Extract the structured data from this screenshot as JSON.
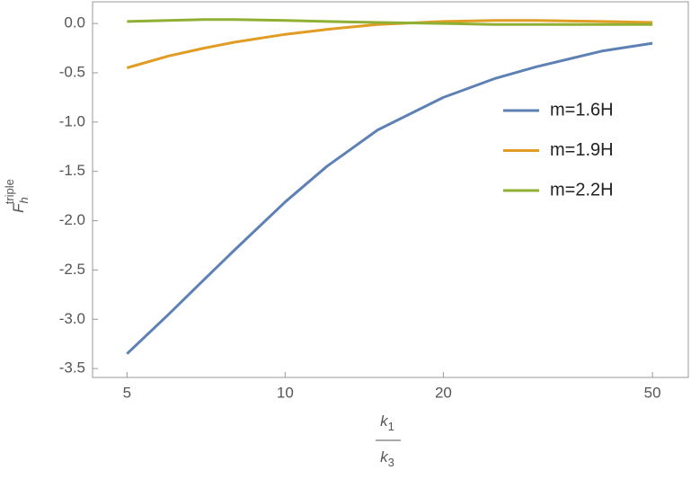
{
  "chart_data": {
    "type": "line",
    "log_x": true,
    "x_label": {
      "numerator": {
        "base": "k",
        "sub": "1"
      },
      "denominator": {
        "base": "k",
        "sub": "3"
      }
    },
    "y_label": {
      "base": "F",
      "sub": "h",
      "sup": "triple"
    },
    "x": [
      5,
      6,
      7,
      8,
      10,
      12,
      15,
      20,
      25,
      30,
      40,
      50
    ],
    "series": [
      {
        "name": "m=1.6H",
        "color": "#5e81b5",
        "values": [
          -3.35,
          -2.95,
          -2.6,
          -2.3,
          -1.81,
          -1.45,
          -1.08,
          -0.75,
          -0.56,
          -0.44,
          -0.28,
          -0.2
        ]
      },
      {
        "name": "m=1.9H",
        "color": "#e19c24",
        "values": [
          -0.45,
          -0.33,
          -0.25,
          -0.19,
          -0.11,
          -0.06,
          -0.01,
          0.02,
          0.03,
          0.03,
          0.02,
          0.01
        ]
      },
      {
        "name": "m=2.2H",
        "color": "#8fb032",
        "values": [
          0.02,
          0.03,
          0.04,
          0.04,
          0.03,
          0.02,
          0.01,
          0.0,
          -0.01,
          -0.01,
          -0.01,
          -0.01
        ]
      }
    ],
    "xlim": [
      4.3,
      58.5
    ],
    "ylim": [
      -3.59,
      0.22
    ],
    "xticks": [
      5,
      10,
      20,
      50
    ],
    "yticks": [
      {
        "value": 0,
        "label": "0.0"
      },
      {
        "value": -0.5,
        "label": "-0.5"
      },
      {
        "value": -1,
        "label": "-1.0"
      },
      {
        "value": -1.5,
        "label": "-1.5"
      },
      {
        "value": -2,
        "label": "-2.0"
      },
      {
        "value": -2.5,
        "label": "-2.5"
      },
      {
        "value": -3,
        "label": "-3.0"
      },
      {
        "value": -3.5,
        "label": "-3.5"
      }
    ],
    "legend": "right"
  }
}
